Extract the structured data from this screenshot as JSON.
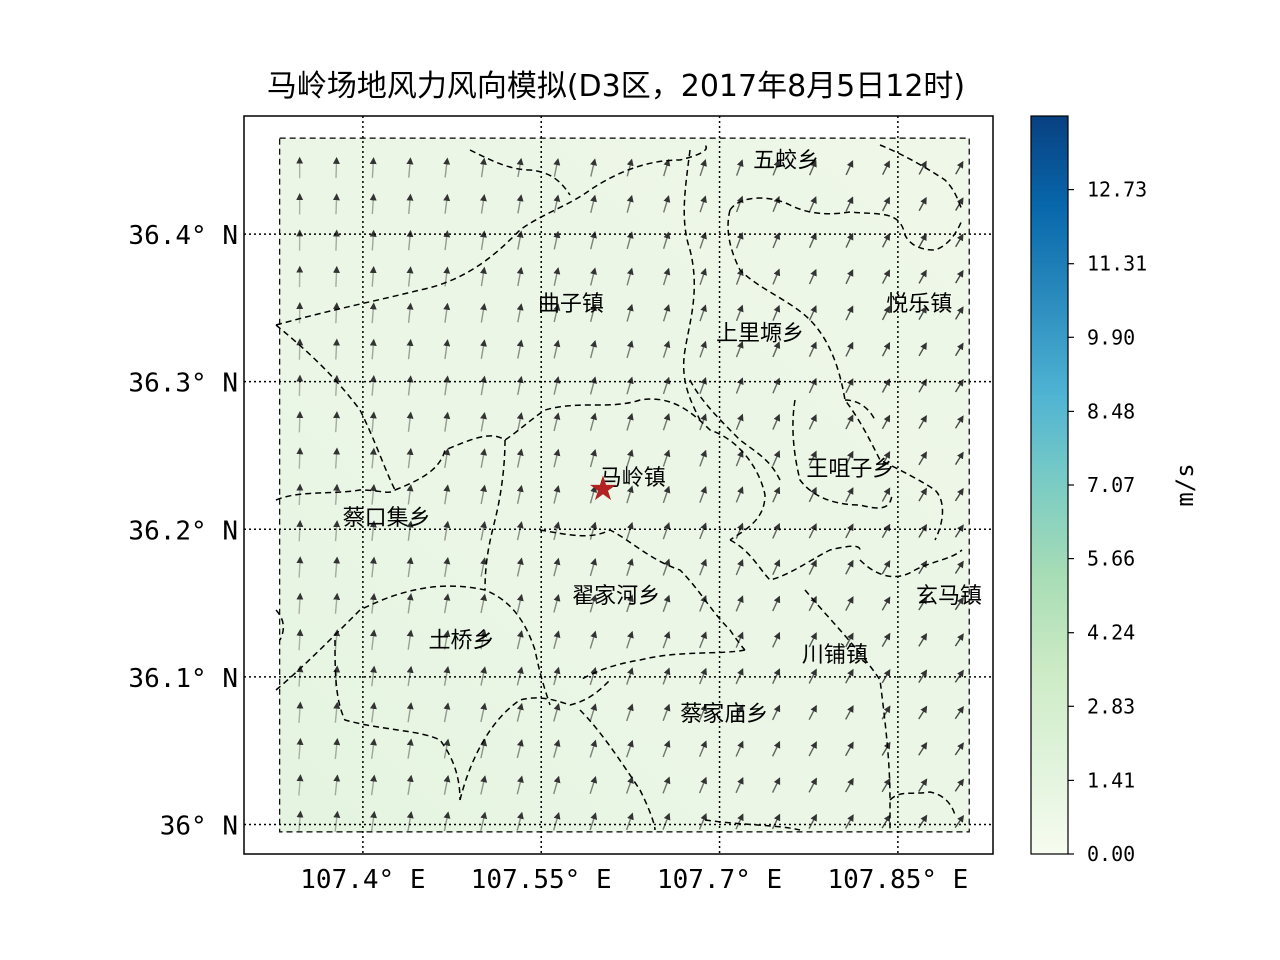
{
  "title": "马岭场地风力风向模拟(D3区，2017年8月5日12时)",
  "map": {
    "lon_range": [
      107.3,
      107.93
    ],
    "lat_range": [
      35.98,
      36.48
    ],
    "domain_lon": [
      107.33,
      107.91
    ],
    "domain_lat": [
      35.995,
      36.465
    ],
    "x_ticks": [
      {
        "value": 107.4,
        "label": "107.4° E"
      },
      {
        "value": 107.55,
        "label": "107.55° E"
      },
      {
        "value": 107.7,
        "label": "107.7° E"
      },
      {
        "value": 107.85,
        "label": "107.85° E"
      }
    ],
    "y_ticks": [
      {
        "value": 36.4,
        "label": "36.4° N"
      },
      {
        "value": 36.3,
        "label": "36.3° N"
      },
      {
        "value": 36.2,
        "label": "36.2° N"
      },
      {
        "value": 36.1,
        "label": "36.1° N"
      },
      {
        "value": 36.0,
        "label": "36° N"
      }
    ],
    "places": [
      {
        "label": "五蛟乡",
        "lon": 107.756,
        "lat": 36.445
      },
      {
        "label": "曲子镇",
        "lon": 107.575,
        "lat": 36.348
      },
      {
        "label": "悦乐镇",
        "lon": 107.868,
        "lat": 36.348
      },
      {
        "label": "上里塬乡",
        "lon": 107.734,
        "lat": 36.328
      },
      {
        "label": "马岭镇",
        "lon": 107.627,
        "lat": 36.23
      },
      {
        "label": "王咀子乡",
        "lon": 107.81,
        "lat": 36.236
      },
      {
        "label": "蔡口集乡",
        "lon": 107.42,
        "lat": 36.203
      },
      {
        "label": "翟家河乡",
        "lon": 107.613,
        "lat": 36.15
      },
      {
        "label": "玄马镇",
        "lon": 107.893,
        "lat": 36.15
      },
      {
        "label": "土桥乡",
        "lon": 107.483,
        "lat": 36.12
      },
      {
        "label": "川铺镇",
        "lon": 107.797,
        "lat": 36.11
      },
      {
        "label": "蔡家庙乡",
        "lon": 107.704,
        "lat": 36.07
      }
    ],
    "site_marker": {
      "name": "马岭镇",
      "lon": 107.602,
      "lat": 36.228,
      "color": "#b22222",
      "icon": "star-icon"
    },
    "boundary_color": "#000000",
    "arrow_color": "#333333",
    "wind_field": {
      "description_units": "m/s",
      "speed_min": 0.6,
      "speed_max": 1.5,
      "prevailing_direction": "southerly, veering to southwesterly in the east"
    }
  },
  "colorbar": {
    "label": "m/s",
    "ticks": [
      "0.00",
      "1.41",
      "2.83",
      "4.24",
      "5.66",
      "7.07",
      "8.48",
      "9.90",
      "11.31",
      "12.73"
    ],
    "max": 14.14,
    "colors": [
      "#f7fcf0",
      "#e0f3db",
      "#ccebc5",
      "#a8ddb5",
      "#7bccc4",
      "#4eb3d3",
      "#2b8cbe",
      "#0868ac",
      "#084081"
    ]
  }
}
